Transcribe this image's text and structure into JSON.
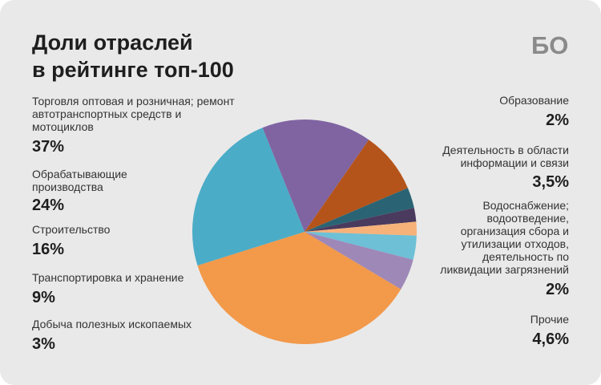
{
  "title_lines": [
    "Доли отраслей",
    "в рейтинге топ-100"
  ],
  "logo_text": "БО",
  "chart_data": {
    "type": "pie",
    "title": "Доли отраслей в рейтинге топ-100",
    "slices": [
      {
        "label_lines": [
          "Образование"
        ],
        "value": 2,
        "value_label": "2%",
        "color": "#f7b27a"
      },
      {
        "label_lines": [
          "Деятельность в области",
          "информации и связи"
        ],
        "value": 3.5,
        "value_label": "3,5%",
        "color": "#6dc0d6"
      },
      {
        "label_lines": [
          "Водоснабжение;",
          "водоотведение,",
          "организация сбора и",
          "утилизации отходов,",
          "деятельность по",
          "ликвидации загрязнений"
        ],
        "value": 2,
        "value_label": "2%",
        "color": "#4a3a5e"
      },
      {
        "label_lines": [
          "Прочие"
        ],
        "value": 4.6,
        "value_label": "4,6%",
        "color": "#9e88b8"
      },
      {
        "label_lines": [
          "Торговля оптовая и розничная; ремонт",
          "автотранспортных средств и",
          "мотоциклов"
        ],
        "value": 37,
        "value_label": "37%",
        "color": "#f2994a"
      },
      {
        "label_lines": [
          "Обрабатывающие",
          "производства"
        ],
        "value": 24,
        "value_label": "24%",
        "color": "#4bacc7"
      },
      {
        "label_lines": [
          "Строительство"
        ],
        "value": 16,
        "value_label": "16%",
        "color": "#8064a2"
      },
      {
        "label_lines": [
          "Транспортировка и хранение"
        ],
        "value": 9,
        "value_label": "9%",
        "color": "#b5541a"
      },
      {
        "label_lines": [
          "Добыча полезных ископаемых"
        ],
        "value": 3,
        "value_label": "3%",
        "color": "#2a6474"
      }
    ]
  }
}
